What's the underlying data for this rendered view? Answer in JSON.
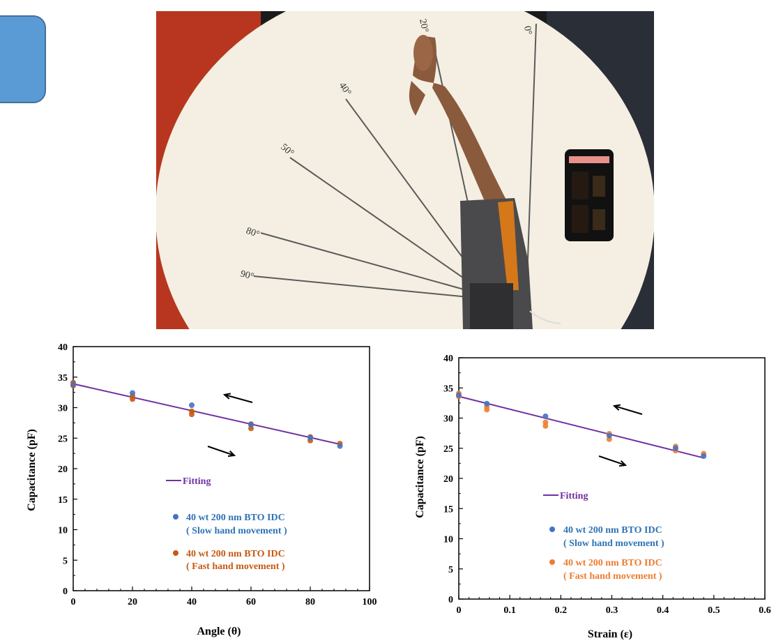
{
  "photo": {
    "angle_marks": [
      "0°",
      "20°",
      "40°",
      "50°",
      "80°",
      "90°"
    ]
  },
  "chart_data": [
    {
      "type": "scatter",
      "xlabel": "Angle (θ)",
      "ylabel": "Capacitance (pF)",
      "xlim": [
        0,
        100
      ],
      "ylim": [
        0,
        40
      ],
      "xticks": [
        0,
        20,
        40,
        60,
        80,
        100
      ],
      "yticks": [
        0,
        5,
        10,
        15,
        20,
        25,
        30,
        35,
        40
      ],
      "fit": {
        "name": "Fitting",
        "color": "#7030a0",
        "x": [
          0,
          90
        ],
        "y": [
          33.9,
          24.0
        ]
      },
      "series": [
        {
          "name": "40 wt 200 nm BTO IDC",
          "name2": "( Slow hand movement )",
          "color": "#4472c4",
          "label_color": "#2e74b5",
          "x": [
            0,
            20,
            40,
            60,
            80,
            90
          ],
          "y": [
            33.8,
            32.4,
            30.4,
            27.2,
            25.1,
            23.7
          ]
        },
        {
          "name": "40 wt 200 nm BTO IDC",
          "name2": "( Fast hand movement )",
          "color": "#c55a11",
          "label_color": "#c55a11",
          "x": [
            0,
            0,
            20,
            20,
            40,
            40,
            60,
            60,
            80,
            80,
            90
          ],
          "y": [
            34.1,
            33.6,
            31.9,
            31.4,
            29.4,
            28.9,
            27.3,
            26.6,
            25.2,
            24.6,
            24.1
          ]
        }
      ],
      "arrows": [
        "left",
        "right"
      ]
    },
    {
      "type": "scatter",
      "xlabel": "Strain (ε)",
      "ylabel": "Capacitance (pF)",
      "xlim": [
        0,
        0.6
      ],
      "ylim": [
        0,
        40
      ],
      "xticks": [
        0,
        0.1,
        0.2,
        0.3,
        0.4,
        0.5,
        0.6
      ],
      "yticks": [
        0,
        5,
        10,
        15,
        20,
        25,
        30,
        35,
        40
      ],
      "fit": {
        "name": "Fitting",
        "color": "#7030a0",
        "x": [
          0,
          0.48
        ],
        "y": [
          33.6,
          23.4
        ]
      },
      "series": [
        {
          "name": "40 wt 200 nm BTO IDC",
          "name2": "( Slow hand movement )",
          "color": "#4472c4",
          "label_color": "#2e74b5",
          "x": [
            0,
            0.055,
            0.17,
            0.295,
            0.425,
            0.48
          ],
          "y": [
            33.8,
            32.4,
            30.3,
            27.1,
            25.0,
            23.7
          ]
        },
        {
          "name": "40 wt 200 nm BTO IDC",
          "name2": "( Fast hand movement )",
          "color": "#ed7d31",
          "label_color": "#ed7d31",
          "x": [
            0,
            0,
            0.055,
            0.055,
            0.17,
            0.17,
            0.295,
            0.295,
            0.425,
            0.425,
            0.48
          ],
          "y": [
            34.1,
            33.6,
            31.9,
            31.4,
            29.3,
            28.7,
            27.4,
            26.5,
            25.3,
            24.6,
            24.1
          ]
        }
      ],
      "arrows": [
        "left",
        "right"
      ]
    }
  ]
}
